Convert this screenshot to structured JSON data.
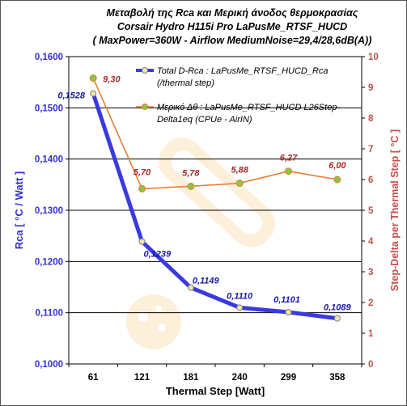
{
  "chart_data": {
    "type": "line",
    "title_lines": [
      "Μεταβολή της Rca  και Μερική άνοδος θερμοκρασίας",
      "Corsair Hydro H115i Pro    LaPusMe_RTSF_HUCD",
      "( MaxPower=360W - Airflow MediumNoise=29,4/28,6dB(A))"
    ],
    "xlabel": "Thermal Step [Watt]",
    "ylabel_left": "Rca  [ °C / Watt ]",
    "ylabel_right": "Step-Delta per Thermal Step  [ °C ]",
    "categories": [
      "61",
      "121",
      "181",
      "240",
      "299",
      "358"
    ],
    "x": [
      61,
      121,
      181,
      240,
      299,
      358
    ],
    "y_left_lim": [
      0.1,
      0.16
    ],
    "y_left_ticks": [
      "0,1000",
      "0,1100",
      "0,1200",
      "0,1300",
      "0,1400",
      "0,1500",
      "0,1600"
    ],
    "y_right_lim": [
      0,
      10
    ],
    "y_right_ticks": [
      "0",
      "1",
      "2",
      "3",
      "4",
      "5",
      "6",
      "7",
      "8",
      "9",
      "10"
    ],
    "grid": "horizontal",
    "legend_position": "top-right",
    "series": [
      {
        "name": "Total D-Rca :  LaPusMe_RTSF_HUCD_Rca (/thermal step)",
        "legend_lines": [
          "Total D-Rca :  LaPusMe_RTSF_HUCD_Rca",
          "(/thermal step)"
        ],
        "axis": "left",
        "values": [
          0.1528,
          0.1239,
          0.1149,
          0.111,
          0.1101,
          0.1089
        ],
        "labels": [
          "0,1528",
          "0,1239",
          "0,1149",
          "0,1110",
          "0,1101",
          "0,1089"
        ],
        "line_color": "#3a3ae0",
        "marker_fill": "#f3e79b",
        "marker_stroke": "#7a7a99"
      },
      {
        "name": "Μερικό Δθ :  LaPusMe_RTSF_HUCD  L26Step-Delta1eq (CPUe - AirIN)",
        "legend_lines": [
          "Μερικό Δθ :  LaPusMe_RTSF_HUCD  L26Step-",
          "Delta1eq (CPUe - AirIN)"
        ],
        "axis": "right",
        "values": [
          9.3,
          5.7,
          5.78,
          5.88,
          6.27,
          6.0
        ],
        "labels": [
          "9,30",
          "5,70",
          "5,78",
          "5,88",
          "6,27",
          "6,00"
        ],
        "line_color": "#e67e33",
        "marker_fill": "#8cc63f",
        "marker_stroke": "#e67e33"
      }
    ],
    "colors": {
      "left_axis": "#3333cc",
      "right_axis": "#c0504d",
      "grid": "#000000"
    }
  }
}
